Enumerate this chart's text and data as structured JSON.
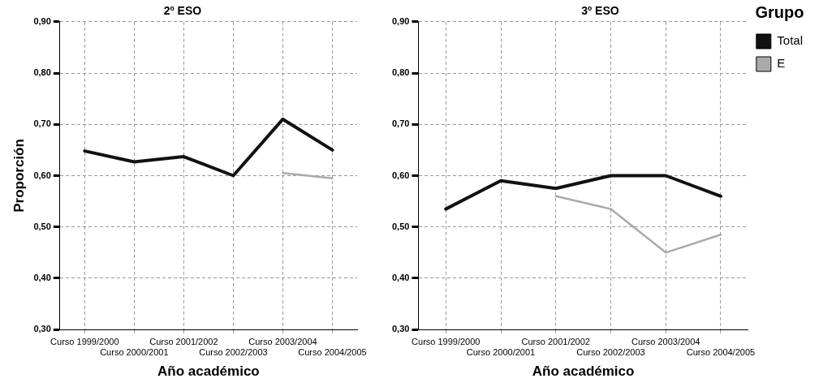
{
  "chart_data": [
    {
      "type": "line",
      "title": "2º ESO",
      "xlabel": "Año académico",
      "ylabel": "Proporción",
      "categories": [
        "Curso 1999/2000",
        "Curso 2000/2001",
        "Curso 2001/2002",
        "Curso 2002/2003",
        "Curso 2003/2004",
        "Curso 2004/2005"
      ],
      "series": [
        {
          "color": "#111111",
          "values": [
            0.648,
            0.627,
            0.637,
            0.6,
            0.71,
            0.65
          ]
        },
        {
          "color": "#aaaaaa",
          "values": [
            null,
            null,
            null,
            null,
            0.605,
            0.595
          ]
        }
      ],
      "ylim": [
        0.3,
        0.9
      ],
      "yticks": [
        {
          "value": 0.3,
          "label": "0,30"
        },
        {
          "value": 0.4,
          "label": "0,40"
        },
        {
          "value": 0.5,
          "label": "0,50"
        },
        {
          "value": 0.6,
          "label": "0,60"
        },
        {
          "value": 0.7,
          "label": "0,70"
        },
        {
          "value": 0.8,
          "label": "0,80"
        },
        {
          "value": 0.9,
          "label": "0,90"
        }
      ],
      "grid": true,
      "marker": "none",
      "legend": false
    },
    {
      "type": "line",
      "title": "3º ESO",
      "xlabel": "Año académico",
      "legend_title": "Grupo",
      "categories": [
        "Curso 1999/2000",
        "Curso 2000/2001",
        "Curso 2001/2002",
        "Curso 2002/2003",
        "Curso 2003/2004",
        "Curso 2004/2005"
      ],
      "series": [
        {
          "name": "Total",
          "color": "#111111",
          "values": [
            0.535,
            0.59,
            0.575,
            0.6,
            0.6,
            0.56
          ]
        },
        {
          "name": "E",
          "color": "#aaaaaa",
          "values": [
            null,
            null,
            0.56,
            0.535,
            0.45,
            0.485
          ]
        }
      ],
      "ylim": [
        0.3,
        0.9
      ],
      "yticks": [
        {
          "value": 0.3,
          "label": "0,30"
        },
        {
          "value": 0.4,
          "label": "0,40"
        },
        {
          "value": 0.5,
          "label": "0,50"
        },
        {
          "value": 0.6,
          "label": "0,60"
        },
        {
          "value": 0.7,
          "label": "0,70"
        },
        {
          "value": 0.8,
          "label": "0,80"
        },
        {
          "value": 0.9,
          "label": "0,90"
        }
      ],
      "grid": true,
      "marker": "none",
      "legend": "right"
    }
  ]
}
